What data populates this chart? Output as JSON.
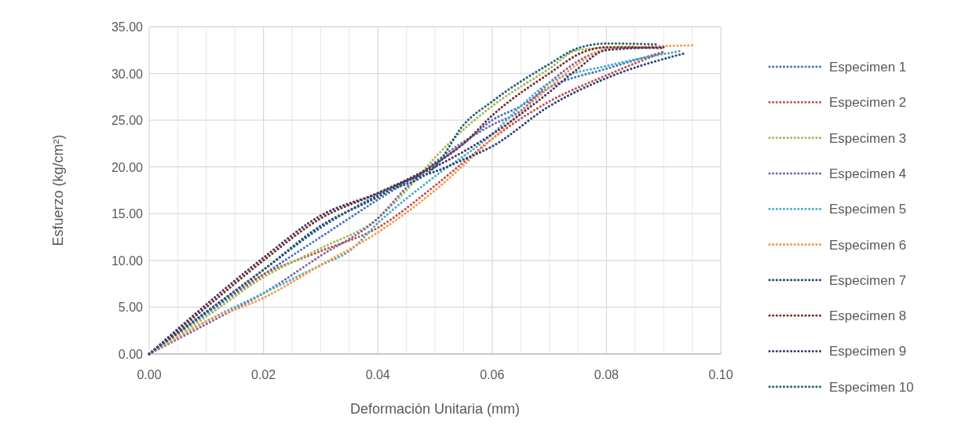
{
  "chart_data": {
    "type": "line",
    "xlabel": "Deformación Unitaria (mm)",
    "ylabel": "Esfuerzo (kg/cm²)",
    "xlim": [
      0,
      0.1
    ],
    "ylim": [
      0,
      35
    ],
    "xticks": [
      {
        "value": 0,
        "label": "0.00"
      },
      {
        "value": 0.005,
        "label": null
      },
      {
        "value": 0.01,
        "label": null
      },
      {
        "value": 0.015,
        "label": null
      },
      {
        "value": 0.02,
        "label": "0.02"
      },
      {
        "value": 0.025,
        "label": null
      },
      {
        "value": 0.03,
        "label": null
      },
      {
        "value": 0.035,
        "label": null
      },
      {
        "value": 0.04,
        "label": "0.04"
      },
      {
        "value": 0.045,
        "label": null
      },
      {
        "value": 0.05,
        "label": null
      },
      {
        "value": 0.055,
        "label": null
      },
      {
        "value": 0.06,
        "label": "0.06"
      },
      {
        "value": 0.065,
        "label": null
      },
      {
        "value": 0.07,
        "label": null
      },
      {
        "value": 0.075,
        "label": null
      },
      {
        "value": 0.08,
        "label": "0.08"
      },
      {
        "value": 0.085,
        "label": null
      },
      {
        "value": 0.09,
        "label": null
      },
      {
        "value": 0.095,
        "label": null
      },
      {
        "value": 0.1,
        "label": "0.10"
      }
    ],
    "yticks": [
      {
        "value": 0,
        "label": "0.00"
      },
      {
        "value": 5,
        "label": "5.00"
      },
      {
        "value": 10,
        "label": "10.00"
      },
      {
        "value": 15,
        "label": "15.00"
      },
      {
        "value": 20,
        "label": "20.00"
      },
      {
        "value": 25,
        "label": "25.00"
      },
      {
        "value": 30,
        "label": "30.00"
      },
      {
        "value": 35,
        "label": "35.00"
      }
    ],
    "grid": true,
    "legend": "right",
    "marker": "none",
    "line_style": "dotted",
    "series": [
      {
        "name": "Especimen 1",
        "color": "#4472c4",
        "x": [
          0,
          0.01,
          0.02,
          0.03,
          0.04,
          0.05,
          0.055,
          0.06,
          0.065,
          0.07,
          0.08,
          0.09
        ],
        "values": [
          0,
          4.3,
          8.5,
          12.5,
          16.5,
          20.3,
          22.5,
          25,
          26.5,
          28.5,
          30.5,
          32.3
        ]
      },
      {
        "name": "Especimen 2",
        "color": "#c0504d",
        "x": [
          0,
          0.01,
          0.02,
          0.03,
          0.04,
          0.05,
          0.055,
          0.06,
          0.07,
          0.08,
          0.09
        ],
        "values": [
          0,
          4.5,
          8.5,
          11,
          13.5,
          18,
          20.5,
          23,
          27,
          29.8,
          32.3
        ]
      },
      {
        "name": "Especimen 3",
        "color": "#9bbb59",
        "x": [
          0,
          0.01,
          0.02,
          0.03,
          0.04,
          0.045,
          0.05,
          0.055,
          0.06,
          0.07,
          0.075,
          0.085
        ],
        "values": [
          0,
          4,
          8.2,
          11.3,
          14.5,
          17.5,
          21,
          24,
          26.5,
          30.5,
          32.5,
          32.9
        ]
      },
      {
        "name": "Especimen 4",
        "color": "#8064a2",
        "x": [
          0,
          0.01,
          0.02,
          0.03,
          0.04,
          0.045,
          0.05,
          0.06,
          0.065,
          0.07,
          0.08,
          0.088
        ],
        "values": [
          0,
          3.2,
          6.5,
          10.5,
          14.5,
          17.8,
          20.5,
          24.5,
          26,
          29,
          32.5,
          32.8
        ]
      },
      {
        "name": "Especimen 5",
        "color": "#4bacc6",
        "x": [
          0,
          0.01,
          0.02,
          0.03,
          0.035,
          0.04,
          0.05,
          0.06,
          0.065,
          0.07,
          0.08,
          0.093
        ],
        "values": [
          0,
          3.5,
          6.5,
          9.5,
          11,
          14,
          19,
          23.5,
          26.5,
          29,
          30.8,
          32.4
        ]
      },
      {
        "name": "Especimen 6",
        "color": "#f79646",
        "x": [
          0,
          0.01,
          0.02,
          0.03,
          0.04,
          0.05,
          0.06,
          0.07,
          0.075,
          0.08,
          0.095
        ],
        "values": [
          0,
          3.5,
          6,
          9.5,
          13,
          17.5,
          23,
          28.5,
          31,
          32.6,
          33
        ]
      },
      {
        "name": "Especimen 7",
        "color": "#264478",
        "x": [
          0,
          0.01,
          0.02,
          0.03,
          0.04,
          0.045,
          0.05,
          0.055,
          0.06,
          0.07,
          0.08,
          0.094
        ],
        "values": [
          0,
          4.5,
          9,
          13.7,
          16.8,
          18.5,
          19.5,
          20.8,
          22.2,
          26.5,
          29.5,
          32.2
        ]
      },
      {
        "name": "Especimen 8",
        "color": "#772c2a",
        "x": [
          0,
          0.01,
          0.02,
          0.03,
          0.04,
          0.05,
          0.055,
          0.06,
          0.07,
          0.076,
          0.08,
          0.09
        ],
        "values": [
          0,
          5,
          10,
          14.5,
          17.2,
          20.3,
          22.5,
          25.5,
          30,
          32.3,
          32.8,
          32.7
        ]
      },
      {
        "name": "Especimen 9",
        "color": "#4a3768",
        "x": [
          0,
          0.01,
          0.02,
          0.03,
          0.04,
          0.05,
          0.06,
          0.07,
          0.075,
          0.08,
          0.09
        ],
        "values": [
          0,
          5.3,
          10.3,
          14.8,
          17.2,
          20,
          23.5,
          28,
          30.5,
          32.5,
          32.8
        ]
      },
      {
        "name": "Especimen 10",
        "color": "#255e79",
        "x": [
          0,
          0.01,
          0.02,
          0.03,
          0.04,
          0.05,
          0.055,
          0.06,
          0.07,
          0.075,
          0.08,
          0.089
        ],
        "values": [
          0,
          4.5,
          9,
          13.5,
          17,
          20,
          24.5,
          27,
          31,
          32.7,
          33.2,
          33.1
        ]
      }
    ]
  }
}
